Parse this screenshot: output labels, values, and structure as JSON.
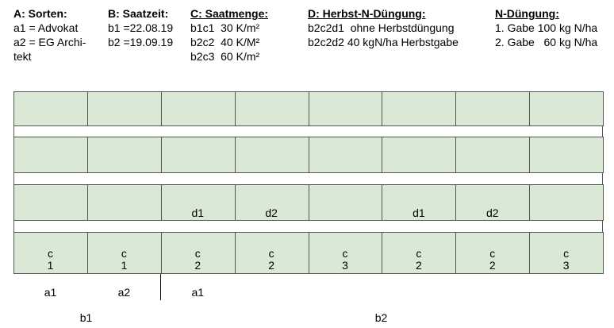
{
  "legend": [
    {
      "title": "A: Sorten:",
      "lines": [
        "a1 = Advokat",
        "a2 = EG Archi-",
        "tekt"
      ]
    },
    {
      "title": "B: Saatzeit:",
      "lines": [
        "b1 =22.08.19",
        "b2 =19.09.19"
      ]
    },
    {
      "title": "C: Saatmenge:",
      "lines": [
        "b1c1  30 K/m²",
        "b2c2  40 K/M²",
        "b2c3  60 K/m²"
      ]
    },
    {
      "title": "D: Herbst-N-Düngung:",
      "lines": [
        "b2c2d1  ohne Herbstdüngung",
        "b2c2d2 40 kgN/ha Herbstgabe"
      ]
    },
    {
      "title": "N-Düngung:",
      "lines": [
        "1. Gabe 100 kg N/ha",
        "2. Gabe   60 kg N/ha"
      ]
    }
  ],
  "d_row": [
    null,
    null,
    "d1",
    "d2",
    null,
    "d1",
    "d2",
    null
  ],
  "c_row": [
    {
      "label": "c",
      "value": 1
    },
    {
      "label": "c",
      "value": 1
    },
    {
      "label": "c",
      "value": 2
    },
    {
      "label": "c",
      "value": 2
    },
    {
      "label": "c",
      "value": 3
    },
    {
      "label": "c",
      "value": 2
    },
    {
      "label": "c",
      "value": 2
    },
    {
      "label": "c",
      "value": 3
    }
  ],
  "a_labels": [
    "a1",
    "a2",
    "a1"
  ],
  "b_labels": [
    "b1",
    "b2"
  ]
}
